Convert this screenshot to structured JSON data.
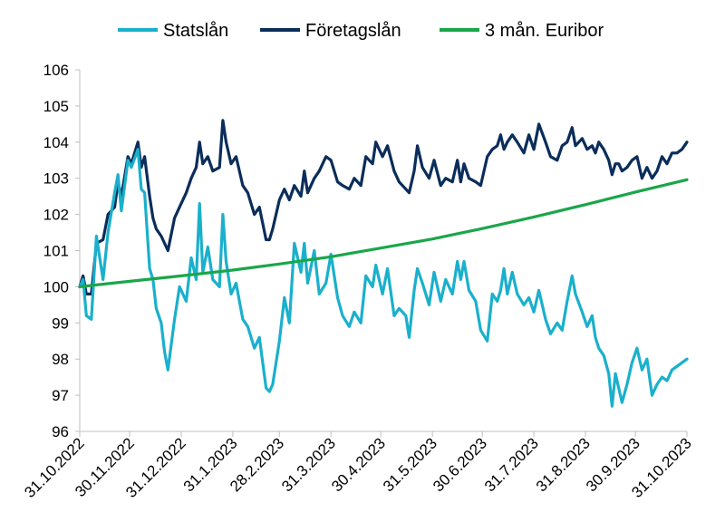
{
  "chart_data": {
    "type": "line",
    "title": "",
    "xlabel": "",
    "ylabel": "",
    "ylim": [
      96,
      106
    ],
    "yticks": [
      96,
      97,
      98,
      99,
      100,
      101,
      102,
      103,
      104,
      105,
      106
    ],
    "x_ticks": [
      "31.10.2022",
      "30.11.2022",
      "31.12.2022",
      "31.1.2023",
      "28.2.2023",
      "31.3.2023",
      "30.4.2023",
      "31.5.2023",
      "30.6.2023",
      "31.7.2023",
      "31.8.2023",
      "30.9.2023",
      "31.10.2023"
    ],
    "grid": false,
    "legend_position": "top",
    "series": [
      {
        "name": "Statslån",
        "color": "#1ab0cc",
        "points": [
          [
            "2022-10-31",
            100.0
          ],
          [
            "2022-11-02",
            100.2
          ],
          [
            "2022-11-04",
            99.2
          ],
          [
            "2022-11-07",
            99.1
          ],
          [
            "2022-11-10",
            101.4
          ],
          [
            "2022-11-14",
            100.2
          ],
          [
            "2022-11-17",
            101.5
          ],
          [
            "2022-11-21",
            102.6
          ],
          [
            "2022-11-23",
            103.1
          ],
          [
            "2022-11-25",
            102.1
          ],
          [
            "2022-11-29",
            103.5
          ],
          [
            "2022-12-01",
            103.3
          ],
          [
            "2022-12-05",
            103.8
          ],
          [
            "2022-12-07",
            102.7
          ],
          [
            "2022-12-09",
            102.6
          ],
          [
            "2022-12-12",
            100.5
          ],
          [
            "2022-12-14",
            100.2
          ],
          [
            "2022-12-16",
            99.4
          ],
          [
            "2022-12-19",
            99.0
          ],
          [
            "2022-12-21",
            98.2
          ],
          [
            "2022-12-23",
            97.7
          ],
          [
            "2022-12-27",
            99.1
          ],
          [
            "2022-12-30",
            100.0
          ],
          [
            "2023-01-03",
            99.6
          ],
          [
            "2023-01-06",
            100.8
          ],
          [
            "2023-01-09",
            100.2
          ],
          [
            "2023-01-11",
            102.3
          ],
          [
            "2023-01-13",
            100.4
          ],
          [
            "2023-01-16",
            101.1
          ],
          [
            "2023-01-19",
            100.2
          ],
          [
            "2023-01-23",
            100.0
          ],
          [
            "2023-01-25",
            102.0
          ],
          [
            "2023-01-27",
            100.7
          ],
          [
            "2023-01-30",
            99.8
          ],
          [
            "2023-02-02",
            100.1
          ],
          [
            "2023-02-06",
            99.1
          ],
          [
            "2023-02-09",
            98.9
          ],
          [
            "2023-02-13",
            98.3
          ],
          [
            "2023-02-16",
            98.6
          ],
          [
            "2023-02-20",
            97.2
          ],
          [
            "2023-02-22",
            97.1
          ],
          [
            "2023-02-24",
            97.3
          ],
          [
            "2023-02-28",
            98.5
          ],
          [
            "2023-03-03",
            99.7
          ],
          [
            "2023-03-06",
            99.0
          ],
          [
            "2023-03-09",
            101.2
          ],
          [
            "2023-03-13",
            100.4
          ],
          [
            "2023-03-15",
            101.2
          ],
          [
            "2023-03-17",
            100.1
          ],
          [
            "2023-03-21",
            101.0
          ],
          [
            "2023-03-24",
            99.8
          ],
          [
            "2023-03-28",
            100.1
          ],
          [
            "2023-03-31",
            100.9
          ],
          [
            "2023-04-04",
            99.7
          ],
          [
            "2023-04-07",
            99.2
          ],
          [
            "2023-04-11",
            98.9
          ],
          [
            "2023-04-14",
            99.3
          ],
          [
            "2023-04-18",
            99.0
          ],
          [
            "2023-04-21",
            100.3
          ],
          [
            "2023-04-25",
            100.0
          ],
          [
            "2023-04-27",
            100.6
          ],
          [
            "2023-05-01",
            99.8
          ],
          [
            "2023-05-04",
            100.5
          ],
          [
            "2023-05-08",
            99.2
          ],
          [
            "2023-05-11",
            99.4
          ],
          [
            "2023-05-15",
            99.2
          ],
          [
            "2023-05-17",
            98.6
          ],
          [
            "2023-05-20",
            99.9
          ],
          [
            "2023-05-22",
            100.5
          ],
          [
            "2023-05-25",
            100.1
          ],
          [
            "2023-05-29",
            99.5
          ],
          [
            "2023-06-01",
            100.4
          ],
          [
            "2023-06-05",
            99.6
          ],
          [
            "2023-06-08",
            100.2
          ],
          [
            "2023-06-12",
            99.8
          ],
          [
            "2023-06-15",
            100.7
          ],
          [
            "2023-06-17",
            100.2
          ],
          [
            "2023-06-19",
            100.7
          ],
          [
            "2023-06-22",
            99.9
          ],
          [
            "2023-06-26",
            99.6
          ],
          [
            "2023-06-29",
            98.8
          ],
          [
            "2023-07-03",
            98.5
          ],
          [
            "2023-07-06",
            99.8
          ],
          [
            "2023-07-09",
            99.6
          ],
          [
            "2023-07-11",
            99.9
          ],
          [
            "2023-07-13",
            100.5
          ],
          [
            "2023-07-15",
            99.8
          ],
          [
            "2023-07-18",
            100.4
          ],
          [
            "2023-07-21",
            99.8
          ],
          [
            "2023-07-25",
            99.5
          ],
          [
            "2023-07-28",
            99.7
          ],
          [
            "2023-07-31",
            99.3
          ],
          [
            "2023-08-03",
            99.9
          ],
          [
            "2023-08-07",
            99.1
          ],
          [
            "2023-08-10",
            98.7
          ],
          [
            "2023-08-14",
            99.0
          ],
          [
            "2023-08-17",
            98.8
          ],
          [
            "2023-08-20",
            99.6
          ],
          [
            "2023-08-23",
            100.3
          ],
          [
            "2023-08-25",
            99.8
          ],
          [
            "2023-08-29",
            99.3
          ],
          [
            "2023-09-01",
            98.9
          ],
          [
            "2023-09-04",
            99.2
          ],
          [
            "2023-09-06",
            98.6
          ],
          [
            "2023-09-08",
            98.3
          ],
          [
            "2023-09-11",
            98.1
          ],
          [
            "2023-09-14",
            97.6
          ],
          [
            "2023-09-16",
            96.7
          ],
          [
            "2023-09-18",
            97.6
          ],
          [
            "2023-09-20",
            97.2
          ],
          [
            "2023-09-22",
            96.8
          ],
          [
            "2023-09-25",
            97.3
          ],
          [
            "2023-09-28",
            97.9
          ],
          [
            "2023-10-01",
            98.3
          ],
          [
            "2023-10-04",
            97.7
          ],
          [
            "2023-10-07",
            98.0
          ],
          [
            "2023-10-10",
            97.0
          ],
          [
            "2023-10-13",
            97.3
          ],
          [
            "2023-10-16",
            97.5
          ],
          [
            "2023-10-19",
            97.4
          ],
          [
            "2023-10-22",
            97.7
          ],
          [
            "2023-10-25",
            97.8
          ],
          [
            "2023-10-28",
            97.9
          ],
          [
            "2023-10-31",
            98.0
          ]
        ]
      },
      {
        "name": "Företagslån",
        "color": "#0b2d5a",
        "points": [
          [
            "2022-10-31",
            100.0
          ],
          [
            "2022-11-02",
            100.3
          ],
          [
            "2022-11-04",
            99.8
          ],
          [
            "2022-11-07",
            99.8
          ],
          [
            "2022-11-10",
            101.2
          ],
          [
            "2022-11-14",
            101.3
          ],
          [
            "2022-11-17",
            102.0
          ],
          [
            "2022-11-21",
            102.2
          ],
          [
            "2022-11-23",
            102.9
          ],
          [
            "2022-11-25",
            102.5
          ],
          [
            "2022-11-29",
            103.6
          ],
          [
            "2022-12-01",
            103.4
          ],
          [
            "2022-12-05",
            104.0
          ],
          [
            "2022-12-07",
            103.3
          ],
          [
            "2022-12-09",
            103.6
          ],
          [
            "2022-12-12",
            102.5
          ],
          [
            "2022-12-14",
            101.9
          ],
          [
            "2022-12-16",
            101.6
          ],
          [
            "2022-12-19",
            101.4
          ],
          [
            "2022-12-21",
            101.2
          ],
          [
            "2022-12-23",
            101.0
          ],
          [
            "2022-12-27",
            101.9
          ],
          [
            "2022-12-30",
            102.2
          ],
          [
            "2023-01-03",
            102.6
          ],
          [
            "2023-01-06",
            103.0
          ],
          [
            "2023-01-09",
            103.3
          ],
          [
            "2023-01-11",
            104.0
          ],
          [
            "2023-01-13",
            103.4
          ],
          [
            "2023-01-16",
            103.6
          ],
          [
            "2023-01-19",
            103.2
          ],
          [
            "2023-01-23",
            103.3
          ],
          [
            "2023-01-25",
            104.6
          ],
          [
            "2023-01-27",
            104.0
          ],
          [
            "2023-01-30",
            103.4
          ],
          [
            "2023-02-02",
            103.6
          ],
          [
            "2023-02-06",
            102.8
          ],
          [
            "2023-02-09",
            102.6
          ],
          [
            "2023-02-13",
            102.0
          ],
          [
            "2023-02-16",
            102.2
          ],
          [
            "2023-02-20",
            101.3
          ],
          [
            "2023-02-22",
            101.3
          ],
          [
            "2023-02-24",
            101.6
          ],
          [
            "2023-02-28",
            102.4
          ],
          [
            "2023-03-03",
            102.7
          ],
          [
            "2023-03-06",
            102.4
          ],
          [
            "2023-03-09",
            102.8
          ],
          [
            "2023-03-13",
            102.5
          ],
          [
            "2023-03-15",
            103.2
          ],
          [
            "2023-03-17",
            102.6
          ],
          [
            "2023-03-21",
            103.0
          ],
          [
            "2023-03-24",
            103.2
          ],
          [
            "2023-03-28",
            103.6
          ],
          [
            "2023-03-31",
            103.5
          ],
          [
            "2023-04-04",
            102.9
          ],
          [
            "2023-04-07",
            102.8
          ],
          [
            "2023-04-11",
            102.7
          ],
          [
            "2023-04-14",
            103.0
          ],
          [
            "2023-04-18",
            102.8
          ],
          [
            "2023-04-21",
            103.6
          ],
          [
            "2023-04-25",
            103.4
          ],
          [
            "2023-04-27",
            104.0
          ],
          [
            "2023-05-01",
            103.6
          ],
          [
            "2023-05-04",
            103.9
          ],
          [
            "2023-05-08",
            103.2
          ],
          [
            "2023-05-11",
            102.9
          ],
          [
            "2023-05-15",
            102.7
          ],
          [
            "2023-05-17",
            102.6
          ],
          [
            "2023-05-20",
            103.2
          ],
          [
            "2023-05-22",
            103.9
          ],
          [
            "2023-05-25",
            103.3
          ],
          [
            "2023-05-29",
            103.0
          ],
          [
            "2023-06-01",
            103.5
          ],
          [
            "2023-06-05",
            102.8
          ],
          [
            "2023-06-08",
            103.0
          ],
          [
            "2023-06-12",
            102.9
          ],
          [
            "2023-06-15",
            103.5
          ],
          [
            "2023-06-17",
            102.9
          ],
          [
            "2023-06-19",
            103.4
          ],
          [
            "2023-06-22",
            103.0
          ],
          [
            "2023-06-26",
            102.9
          ],
          [
            "2023-06-29",
            102.8
          ],
          [
            "2023-07-03",
            103.6
          ],
          [
            "2023-07-06",
            103.8
          ],
          [
            "2023-07-09",
            103.9
          ],
          [
            "2023-07-11",
            104.2
          ],
          [
            "2023-07-13",
            103.8
          ],
          [
            "2023-07-15",
            104.0
          ],
          [
            "2023-07-18",
            104.2
          ],
          [
            "2023-07-21",
            104.0
          ],
          [
            "2023-07-25",
            103.7
          ],
          [
            "2023-07-28",
            104.2
          ],
          [
            "2023-07-31",
            103.8
          ],
          [
            "2023-08-03",
            104.5
          ],
          [
            "2023-08-07",
            104.0
          ],
          [
            "2023-08-10",
            103.6
          ],
          [
            "2023-08-14",
            103.5
          ],
          [
            "2023-08-17",
            103.9
          ],
          [
            "2023-08-20",
            104.0
          ],
          [
            "2023-08-23",
            104.4
          ],
          [
            "2023-08-25",
            103.9
          ],
          [
            "2023-08-29",
            104.1
          ],
          [
            "2023-09-01",
            103.8
          ],
          [
            "2023-09-04",
            103.9
          ],
          [
            "2023-09-06",
            103.7
          ],
          [
            "2023-09-08",
            104.0
          ],
          [
            "2023-09-11",
            103.8
          ],
          [
            "2023-09-14",
            103.5
          ],
          [
            "2023-09-16",
            103.1
          ],
          [
            "2023-09-18",
            103.4
          ],
          [
            "2023-09-20",
            103.4
          ],
          [
            "2023-09-22",
            103.2
          ],
          [
            "2023-09-25",
            103.3
          ],
          [
            "2023-09-28",
            103.5
          ],
          [
            "2023-10-01",
            103.6
          ],
          [
            "2023-10-04",
            103.0
          ],
          [
            "2023-10-07",
            103.3
          ],
          [
            "2023-10-10",
            103.0
          ],
          [
            "2023-10-13",
            103.2
          ],
          [
            "2023-10-16",
            103.6
          ],
          [
            "2023-10-19",
            103.4
          ],
          [
            "2023-10-22",
            103.7
          ],
          [
            "2023-10-25",
            103.7
          ],
          [
            "2023-10-28",
            103.8
          ],
          [
            "2023-10-31",
            104.0
          ]
        ]
      },
      {
        "name": "3 mån. Euribor",
        "color": "#1aa64a",
        "points": [
          [
            "2022-10-31",
            100.0
          ],
          [
            "2022-11-30",
            100.15
          ],
          [
            "2022-12-31",
            100.3
          ],
          [
            "2023-01-31",
            100.46
          ],
          [
            "2023-02-28",
            100.63
          ],
          [
            "2023-03-31",
            100.83
          ],
          [
            "2023-04-30",
            101.07
          ],
          [
            "2023-05-31",
            101.32
          ],
          [
            "2023-06-30",
            101.61
          ],
          [
            "2023-07-31",
            101.93
          ],
          [
            "2023-08-31",
            102.27
          ],
          [
            "2023-09-30",
            102.62
          ],
          [
            "2023-10-31",
            102.96
          ]
        ]
      }
    ]
  }
}
